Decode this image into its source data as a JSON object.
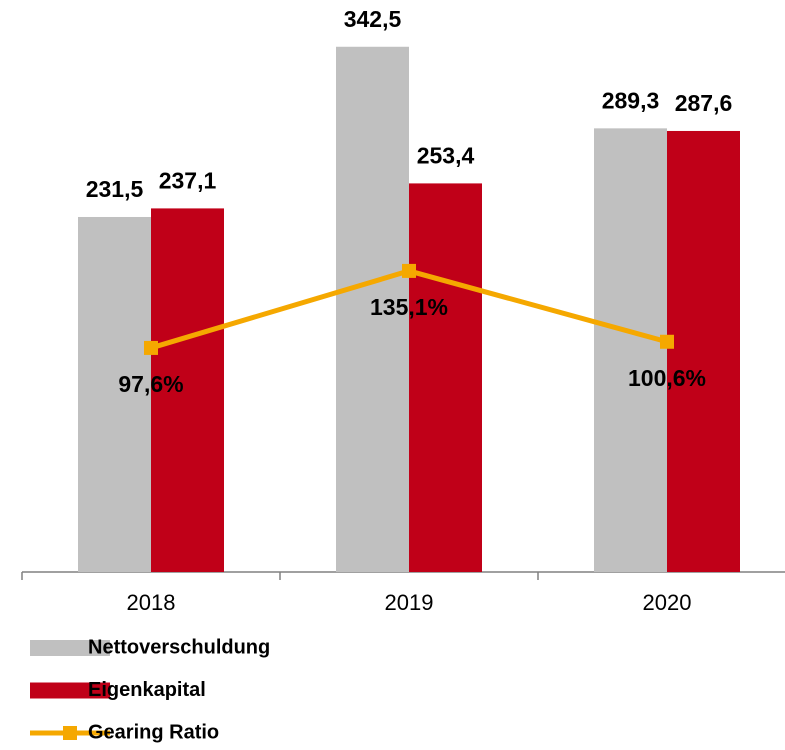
{
  "chart_data": {
    "type": "bar",
    "categories": [
      "2018",
      "2019",
      "2020"
    ],
    "ylim": [
      0,
      373
    ],
    "y2lim": [
      -11.5,
      267
    ],
    "series": [
      {
        "name": "Nettoverschuldung",
        "type": "bar",
        "color": "#c0c0c0",
        "values": [
          231.5,
          342.5,
          289.3
        ],
        "value_labels": [
          "231,5",
          "342,5",
          "289,3"
        ]
      },
      {
        "name": "Eigenkapital",
        "type": "bar",
        "color": "#c00018",
        "values": [
          237.1,
          253.4,
          287.6
        ],
        "value_labels": [
          "237,1",
          "253,4",
          "287,6"
        ]
      },
      {
        "name": "Gearing Ratio",
        "type": "line",
        "axis": "y2",
        "color": "#f5a800",
        "values": [
          97.6,
          135.1,
          100.6
        ],
        "value_labels": [
          "97,6%",
          "135,1%",
          "100,6%"
        ]
      }
    ],
    "legend": "bottom-left"
  }
}
